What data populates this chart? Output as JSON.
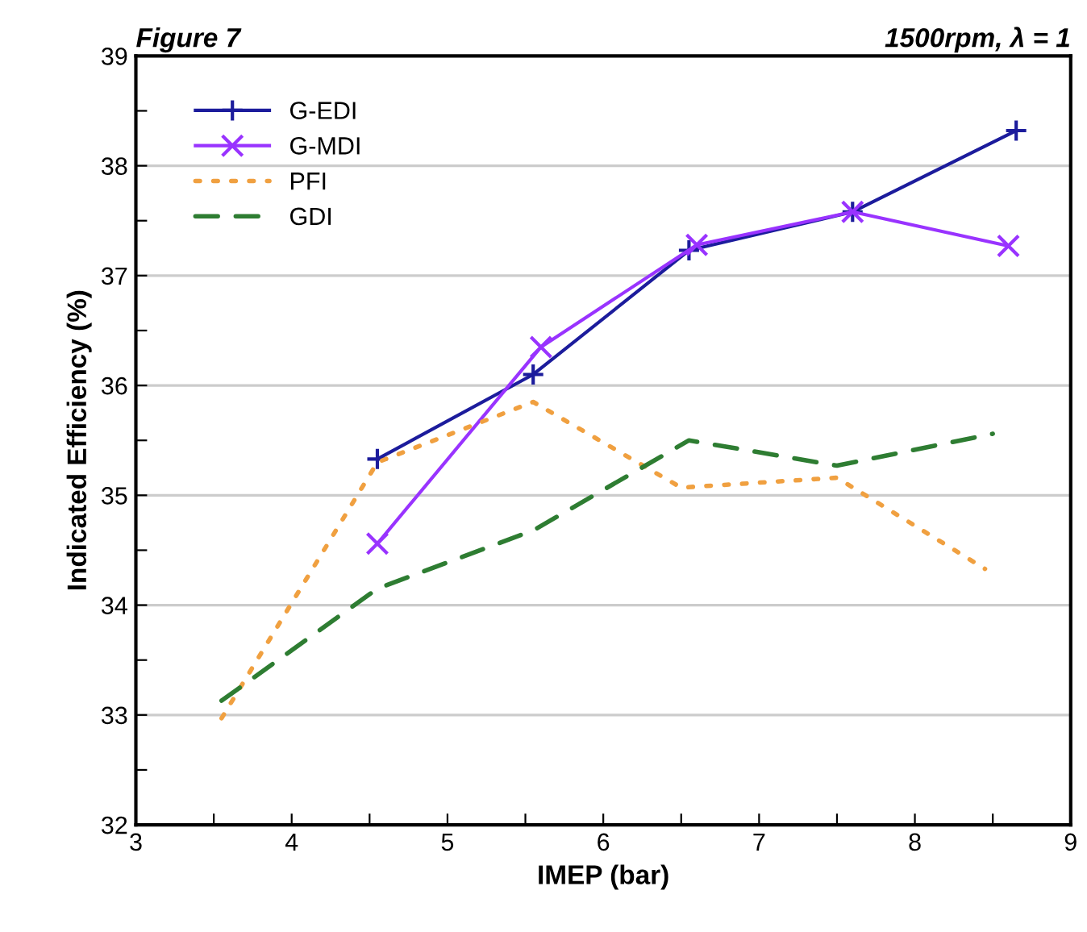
{
  "chart_data": {
    "type": "line",
    "title": "Figure 7",
    "subtitle": "1500rpm, λ = 1",
    "xlabel": "IMEP (bar)",
    "ylabel": "Indicated Efficiency (%)",
    "series": [
      {
        "name": "G-EDI",
        "color": "#1c1c9c",
        "marker": "cross",
        "line_style": "solid",
        "x": [
          4.55,
          5.55,
          6.55,
          7.6,
          8.65
        ],
        "values": [
          35.33,
          36.1,
          37.23,
          37.58,
          38.32
        ]
      },
      {
        "name": "G-MDI",
        "color": "#9933ff",
        "marker": "x",
        "line_style": "solid",
        "x": [
          4.55,
          5.6,
          6.6,
          7.6,
          8.6
        ],
        "values": [
          34.56,
          36.35,
          37.28,
          37.58,
          37.27
        ]
      },
      {
        "name": "PFI",
        "color": "#f0a040",
        "marker": "none",
        "line_style": "dotted",
        "x": [
          3.55,
          4.55,
          5.55,
          6.5,
          7.5,
          8.45
        ],
        "values": [
          32.97,
          35.3,
          35.85,
          35.07,
          35.16,
          34.33
        ]
      },
      {
        "name": "GDI",
        "color": "#2e7d32",
        "marker": "none",
        "line_style": "dashed",
        "x": [
          3.55,
          4.55,
          5.55,
          6.55,
          7.5,
          8.5
        ],
        "values": [
          33.13,
          34.15,
          34.68,
          35.5,
          35.27,
          35.56
        ]
      }
    ],
    "xlim": [
      3,
      9
    ],
    "xticks": [
      3,
      {
        "value": 3.5,
        "label": null
      },
      4,
      {
        "value": 4.5,
        "label": null
      },
      5,
      {
        "value": 5.5,
        "label": null
      },
      6,
      {
        "value": 6.5,
        "label": null
      },
      7,
      {
        "value": 7.5,
        "label": null
      },
      8,
      {
        "value": 8.5,
        "label": null
      },
      9
    ],
    "ylim": [
      32,
      39
    ],
    "yticks": [
      32,
      {
        "value": 32.5,
        "label": null
      },
      33,
      {
        "value": 33.5,
        "label": null
      },
      34,
      {
        "value": 34.5,
        "label": null
      },
      35,
      {
        "value": 35.5,
        "label": null
      },
      36,
      {
        "value": 36.5,
        "label": null
      },
      37,
      {
        "value": 37.5,
        "label": null
      },
      38,
      {
        "value": 38.5,
        "label": null
      },
      39
    ],
    "grid": "y",
    "legend": "top left"
  }
}
